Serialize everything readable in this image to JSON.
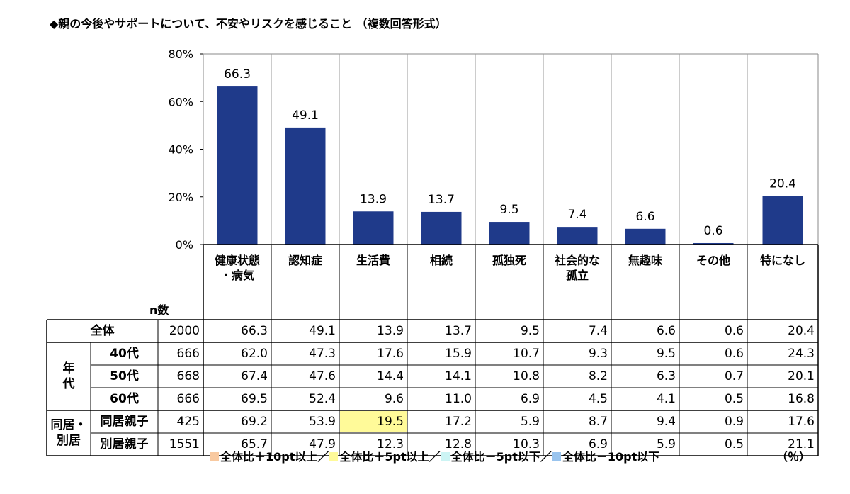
{
  "title": "◆親の今後やサポートについて、不安やリスクを感じること （複数回答形式）",
  "chart_data": {
    "type": "bar",
    "categories": [
      "健康状態・病気",
      "認知症",
      "生活費",
      "相続",
      "孤独死",
      "社会的な孤立",
      "無趣味",
      "その他",
      "特になし"
    ],
    "values": [
      66.3,
      49.1,
      13.9,
      13.7,
      9.5,
      7.4,
      6.6,
      0.6,
      20.4
    ],
    "ylim": [
      0,
      80
    ],
    "yticks": [
      "0%",
      "20%",
      "40%",
      "60%",
      "80%"
    ],
    "bar_color": "#1f3a8a",
    "grid": false
  },
  "table": {
    "n_header": "n数",
    "col_headers": [
      [
        "健康状態",
        "・病気"
      ],
      [
        "認知症"
      ],
      [
        "生活費"
      ],
      [
        "相続"
      ],
      [
        "孤独死"
      ],
      [
        "社会的な",
        "孤立"
      ],
      [
        "無趣味"
      ],
      [
        "その他"
      ],
      [
        "特になし"
      ]
    ],
    "groups": [
      {
        "label": "年代",
        "lines": [
          "年",
          "代"
        ],
        "start": 1,
        "span": 3
      },
      {
        "label": "同居・別居",
        "lines": [
          "同居・",
          "別居"
        ],
        "start": 4,
        "span": 2
      }
    ],
    "rows": [
      {
        "label": "全体",
        "n": "2000",
        "values": [
          "66.3",
          "49.1",
          "13.9",
          "13.7",
          "9.5",
          "7.4",
          "6.6",
          "0.6",
          "20.4"
        ]
      },
      {
        "label": "40代",
        "n": "666",
        "values": [
          "62.0",
          "47.3",
          "17.6",
          "15.9",
          "10.7",
          "9.3",
          "9.5",
          "0.6",
          "24.3"
        ]
      },
      {
        "label": "50代",
        "n": "668",
        "values": [
          "67.4",
          "47.6",
          "14.4",
          "14.1",
          "10.8",
          "8.2",
          "6.3",
          "0.7",
          "20.1"
        ]
      },
      {
        "label": "60代",
        "n": "666",
        "values": [
          "69.5",
          "52.4",
          "9.6",
          "11.0",
          "6.9",
          "4.5",
          "4.1",
          "0.5",
          "16.8"
        ]
      },
      {
        "label": "同居親子",
        "n": "425",
        "values": [
          "69.2",
          "53.9",
          "19.5",
          "17.2",
          "5.9",
          "8.7",
          "9.4",
          "0.9",
          "17.6"
        ]
      },
      {
        "label": "別居親子",
        "n": "1551",
        "values": [
          "65.7",
          "47.9",
          "12.3",
          "12.8",
          "10.3",
          "6.9",
          "5.9",
          "0.5",
          "21.1"
        ]
      }
    ],
    "highlights": [
      {
        "row": 4,
        "col": 2,
        "color": "#fffa99"
      }
    ]
  },
  "legend": [
    {
      "label": "全体比＋10pt以上／",
      "color": "#f8c9a0"
    },
    {
      "label": "全体比＋5pt以上／",
      "color": "#fffa99"
    },
    {
      "label": "全体比－5pt以下／",
      "color": "#ccf4f4"
    },
    {
      "label": "全体比－10pt以下",
      "color": "#99c4ee"
    }
  ],
  "unit_note": "（％）"
}
